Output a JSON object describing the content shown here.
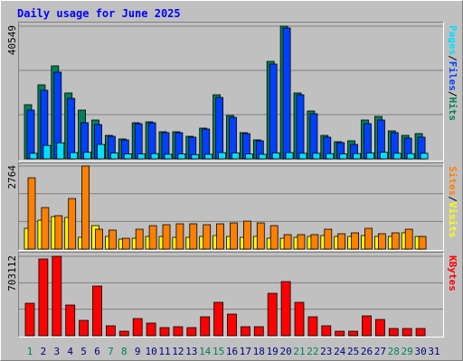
{
  "title": "Daily usage for June 2025",
  "legend_separator": "/",
  "chart_data": [
    {
      "type": "bar",
      "ylim": [
        0,
        40549
      ],
      "yticks": [
        40549
      ],
      "series": [
        {
          "name": "Hits",
          "color": "#00805c",
          "values": [
            16551,
            22620,
            28412,
            20137,
            14896,
            11861,
            7172,
            6069,
            11034,
            11310,
            8276,
            8276,
            6896,
            9379,
            19585,
            13241,
            8000,
            5793,
            29792,
            40549,
            20137,
            14620,
            7172,
            5241,
            5517,
            11861,
            12965,
            8551,
            7172,
            7724,
            0
          ]
        },
        {
          "name": "Files",
          "color": "#0040ff",
          "values": [
            14896,
            20965,
            26482,
            18482,
            11034,
            10482,
            6896,
            5793,
            10758,
            11034,
            8000,
            8000,
            6620,
            9103,
            18758,
            12689,
            7724,
            5517,
            28964,
            39998,
            19585,
            13793,
            6620,
            4965,
            4414,
            10758,
            11861,
            8000,
            6345,
            6620,
            0
          ]
        },
        {
          "name": "Pages",
          "color": "#00e0ff",
          "values": [
            1700,
            4100,
            4900,
            1900,
            2000,
            4400,
            1800,
            1500,
            1500,
            1600,
            1400,
            1500,
            1300,
            1400,
            1900,
            1800,
            1500,
            1400,
            1800,
            1900,
            1700,
            1700,
            1600,
            1500,
            1600,
            1800,
            2000,
            1700,
            1600,
            1700,
            0
          ]
        }
      ]
    },
    {
      "type": "bar",
      "ylim": [
        0,
        2764
      ],
      "yticks": [
        2764
      ],
      "series": [
        {
          "name": "Visits",
          "color": "#ffff00",
          "values": [
            691,
            961,
            1082,
            1052,
            391,
            781,
            421,
            330,
            360,
            421,
            421,
            391,
            391,
            421,
            451,
            421,
            391,
            421,
            360,
            360,
            391,
            421,
            451,
            421,
            421,
            451,
            421,
            421,
            541,
            421,
            0
          ]
        },
        {
          "name": "Sites",
          "color": "#ff8000",
          "values": [
            2373,
            1382,
            1112,
            1682,
            2764,
            661,
            631,
            360,
            661,
            781,
            811,
            841,
            841,
            811,
            841,
            871,
            931,
            871,
            781,
            481,
            481,
            481,
            661,
            511,
            541,
            691,
            511,
            541,
            661,
            421,
            0
          ]
        }
      ]
    },
    {
      "type": "bar",
      "ylim": [
        0,
        703112
      ],
      "yticks": [
        703112
      ],
      "categories": [
        "1",
        "2",
        "3",
        "4",
        "5",
        "6",
        "7",
        "8",
        "9",
        "10",
        "11",
        "12",
        "13",
        "14",
        "15",
        "16",
        "17",
        "18",
        "19",
        "20",
        "21",
        "22",
        "23",
        "24",
        "25",
        "26",
        "27",
        "28",
        "29",
        "30",
        "31"
      ],
      "category_colors": [
        "#00805c",
        "#000080",
        "#000080",
        "#000080",
        "#000080",
        "#000080",
        "#00805c",
        "#00805c",
        "#000080",
        "#000080",
        "#000080",
        "#000080",
        "#000080",
        "#00805c",
        "#00805c",
        "#000080",
        "#000080",
        "#000080",
        "#000080",
        "#000080",
        "#00805c",
        "#00805c",
        "#000080",
        "#000080",
        "#000080",
        "#000080",
        "#000080",
        "#00805c",
        "#00805c",
        "#000080",
        "#000080"
      ],
      "series": [
        {
          "name": "KBytes",
          "color": "#ff0000",
          "values": [
            287637,
            679142,
            703112,
            271657,
            135828,
            439445,
            87889,
            39950,
            151808,
            111859,
            71909,
            79899,
            71909,
            167787,
            295627,
            191758,
            79899,
            79899,
            375525,
            479394,
            295627,
            167787,
            87889,
            39950,
            39950,
            175778,
            143818,
            63919,
            63919,
            63919,
            0
          ]
        }
      ]
    }
  ]
}
